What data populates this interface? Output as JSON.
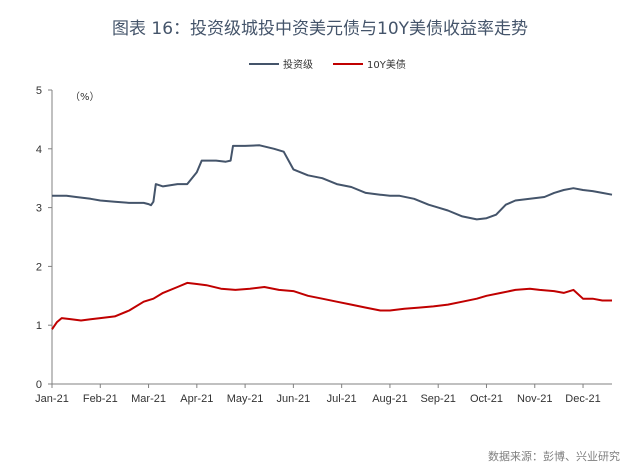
{
  "chart_data": {
    "type": "line",
    "title": "图表 16：投资级城投中资美元债与10Y美债收益率走势",
    "unit_label": "（%）",
    "x_labels": [
      "Jan-21",
      "Feb-21",
      "Mar-21",
      "Apr-21",
      "May-21",
      "Jun-21",
      "Jul-21",
      "Aug-21",
      "Sep-21",
      "Oct-21",
      "Nov-21",
      "Dec-21"
    ],
    "x_range": [
      0,
      11.6
    ],
    "ylim": [
      0,
      5
    ],
    "yticks": [
      0,
      1,
      2,
      3,
      4,
      5
    ],
    "grid": false,
    "legend_position": "top",
    "series": [
      {
        "name": "投资级",
        "color": "#44546A",
        "points": [
          [
            0,
            3.2
          ],
          [
            0.3,
            3.2
          ],
          [
            0.5,
            3.18
          ],
          [
            0.8,
            3.15
          ],
          [
            1.0,
            3.12
          ],
          [
            1.3,
            3.1
          ],
          [
            1.6,
            3.08
          ],
          [
            1.9,
            3.08
          ],
          [
            2.0,
            3.06
          ],
          [
            2.05,
            3.04
          ],
          [
            2.1,
            3.1
          ],
          [
            2.15,
            3.4
          ],
          [
            2.3,
            3.36
          ],
          [
            2.6,
            3.4
          ],
          [
            2.8,
            3.4
          ],
          [
            3.0,
            3.6
          ],
          [
            3.1,
            3.8
          ],
          [
            3.4,
            3.8
          ],
          [
            3.6,
            3.78
          ],
          [
            3.7,
            3.8
          ],
          [
            3.75,
            4.05
          ],
          [
            4.0,
            4.05
          ],
          [
            4.3,
            4.06
          ],
          [
            4.6,
            4.0
          ],
          [
            4.8,
            3.95
          ],
          [
            4.9,
            3.8
          ],
          [
            5.0,
            3.65
          ],
          [
            5.3,
            3.55
          ],
          [
            5.6,
            3.5
          ],
          [
            5.9,
            3.4
          ],
          [
            6.2,
            3.35
          ],
          [
            6.5,
            3.25
          ],
          [
            6.8,
            3.22
          ],
          [
            7.0,
            3.2
          ],
          [
            7.2,
            3.2
          ],
          [
            7.5,
            3.15
          ],
          [
            7.8,
            3.05
          ],
          [
            8.0,
            3.0
          ],
          [
            8.2,
            2.95
          ],
          [
            8.5,
            2.85
          ],
          [
            8.8,
            2.8
          ],
          [
            9.0,
            2.82
          ],
          [
            9.2,
            2.88
          ],
          [
            9.4,
            3.05
          ],
          [
            9.6,
            3.12
          ],
          [
            9.9,
            3.15
          ],
          [
            10.2,
            3.18
          ],
          [
            10.4,
            3.25
          ],
          [
            10.6,
            3.3
          ],
          [
            10.8,
            3.33
          ],
          [
            11.0,
            3.3
          ],
          [
            11.2,
            3.28
          ],
          [
            11.4,
            3.25
          ],
          [
            11.6,
            3.22
          ]
        ]
      },
      {
        "name": "10Y美债",
        "color": "#C00000",
        "points": [
          [
            0,
            0.93
          ],
          [
            0.1,
            1.05
          ],
          [
            0.2,
            1.12
          ],
          [
            0.4,
            1.1
          ],
          [
            0.6,
            1.08
          ],
          [
            0.8,
            1.1
          ],
          [
            1.0,
            1.12
          ],
          [
            1.3,
            1.15
          ],
          [
            1.6,
            1.25
          ],
          [
            1.9,
            1.4
          ],
          [
            2.1,
            1.45
          ],
          [
            2.3,
            1.55
          ],
          [
            2.6,
            1.65
          ],
          [
            2.8,
            1.72
          ],
          [
            3.0,
            1.7
          ],
          [
            3.2,
            1.68
          ],
          [
            3.5,
            1.62
          ],
          [
            3.8,
            1.6
          ],
          [
            4.1,
            1.62
          ],
          [
            4.4,
            1.65
          ],
          [
            4.7,
            1.6
          ],
          [
            5.0,
            1.58
          ],
          [
            5.3,
            1.5
          ],
          [
            5.6,
            1.45
          ],
          [
            5.9,
            1.4
          ],
          [
            6.2,
            1.35
          ],
          [
            6.5,
            1.3
          ],
          [
            6.8,
            1.25
          ],
          [
            7.0,
            1.25
          ],
          [
            7.3,
            1.28
          ],
          [
            7.6,
            1.3
          ],
          [
            7.9,
            1.32
          ],
          [
            8.2,
            1.35
          ],
          [
            8.5,
            1.4
          ],
          [
            8.8,
            1.45
          ],
          [
            9.0,
            1.5
          ],
          [
            9.3,
            1.55
          ],
          [
            9.6,
            1.6
          ],
          [
            9.9,
            1.62
          ],
          [
            10.1,
            1.6
          ],
          [
            10.4,
            1.58
          ],
          [
            10.6,
            1.55
          ],
          [
            10.8,
            1.6
          ],
          [
            11.0,
            1.45
          ],
          [
            11.2,
            1.45
          ],
          [
            11.4,
            1.42
          ],
          [
            11.6,
            1.42
          ]
        ]
      }
    ]
  },
  "source": "数据来源：彭博、兴业研究"
}
